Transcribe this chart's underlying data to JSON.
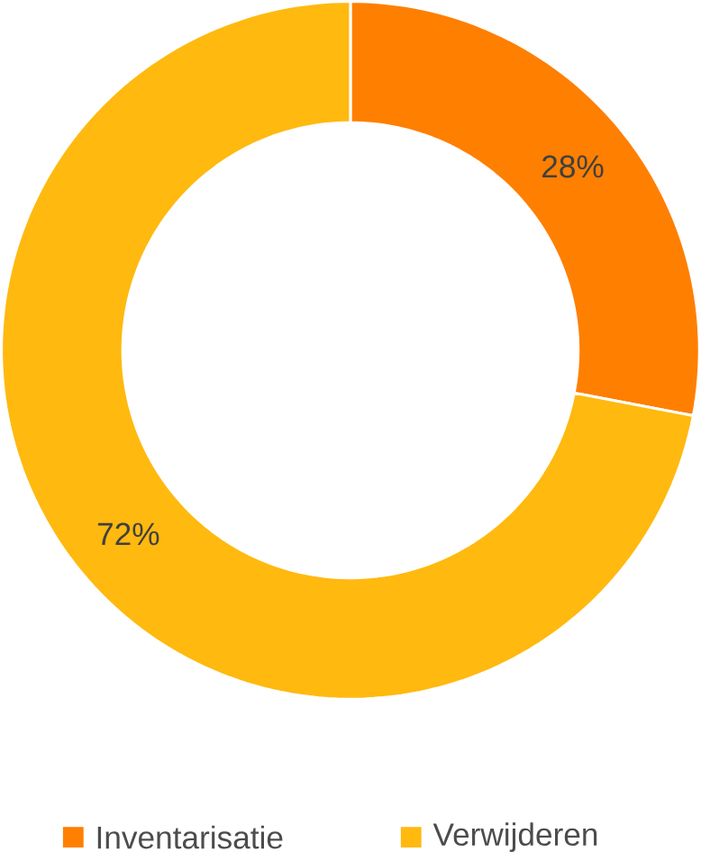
{
  "chart_data": {
    "type": "donut",
    "categories": [
      "Inventarisatie",
      "Verwijderen"
    ],
    "values": [
      28,
      72
    ],
    "colors": [
      "#ff7f00",
      "#ffb90f"
    ],
    "value_labels": [
      "28%",
      "72%"
    ],
    "legend": "bottom"
  }
}
